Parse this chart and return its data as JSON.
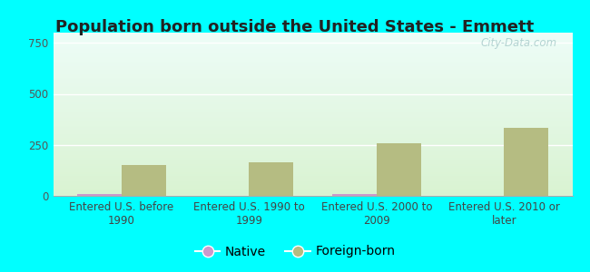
{
  "title": "Population born outside the United States - Emmett",
  "categories": [
    "Entered U.S. before\n1990",
    "Entered U.S. 1990 to\n1999",
    "Entered U.S. 2000 to\n2009",
    "Entered U.S. 2010 or\nlater"
  ],
  "native_values": [
    10,
    0,
    10,
    0
  ],
  "foreign_values": [
    150,
    165,
    258,
    335
  ],
  "native_color": "#cc99cc",
  "foreign_color": "#b5bc82",
  "background_outer": "#00ffff",
  "ylim": [
    0,
    800
  ],
  "yticks": [
    0,
    250,
    500,
    750
  ],
  "bar_width": 0.35,
  "title_fontsize": 13,
  "tick_fontsize": 8.5,
  "legend_fontsize": 10,
  "watermark_text": "City-Data.com"
}
